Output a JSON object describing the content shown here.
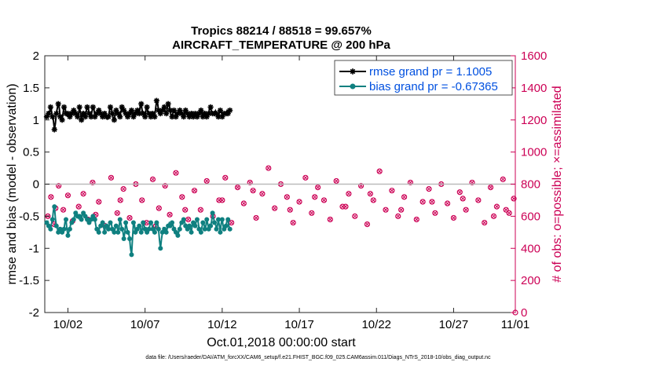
{
  "chart_data": {
    "type": "line",
    "title_line1": "Tropics 88214 / 88518 = 99.657%",
    "title_line2": "AIRCRAFT_TEMPERATURE @ 200 hPa",
    "xlabel": "Oct.01,2018 00:00:00 start",
    "ylabel_left": "rmse and bias (model - observation)",
    "ylabel_right": "# of obs: o=possible; ×=assimilated",
    "footer": "data file: /Users/raeder/DAI/ATM_forcXX/CAM6_setup/f.e21.FHIST_BGC.f09_025.CAM6assim.011/Diags_NTrS_2018-10/obs_diag_output.nc",
    "xlim": [
      0.5,
      31.0
    ],
    "ylim_left": [
      -2,
      2
    ],
    "ylim_right": [
      0,
      1600
    ],
    "xticks": [
      {
        "value": 2,
        "label": "10/02"
      },
      {
        "value": 7,
        "label": "10/07"
      },
      {
        "value": 12,
        "label": "10/12"
      },
      {
        "value": 17,
        "label": "10/17"
      },
      {
        "value": 22,
        "label": "10/22"
      },
      {
        "value": 27,
        "label": "10/27"
      },
      {
        "value": 31,
        "label": "11/01"
      }
    ],
    "yticks_left": [
      "-2",
      "-1.5",
      "-1",
      "-0.5",
      "0",
      "0.5",
      "1",
      "1.5",
      "2"
    ],
    "yticks_right": [
      "0",
      "200",
      "400",
      "600",
      "800",
      "1000",
      "1200",
      "1400",
      "1600"
    ],
    "legend": {
      "position": "top-right",
      "entries": [
        {
          "label": "rmse grand pr = 1.1005",
          "series": "rmse"
        },
        {
          "label": "bias grand pr = -0.67365",
          "series": "bias"
        }
      ]
    },
    "colors": {
      "rmse": "#000000",
      "bias": "#0f8080",
      "obs": "#cc0055",
      "zero_line": "#bbbbbb",
      "left_axis_text": "#000000",
      "right_axis_text": "#cc0055",
      "legend_text": "#0050e0"
    },
    "x_start": 0.625,
    "x_step": 0.125,
    "rmse_anchors": [
      1.05,
      1.1,
      1.2,
      1.05,
      0.85,
      1.1,
      1.25,
      1.05,
      1.0,
      1.2,
      1.1,
      1.1,
      1.05,
      1.1,
      1.15,
      1.1,
      1.05,
      1.2,
      1.0,
      1.1,
      1.05,
      1.2,
      1.1,
      1.05,
      1.2,
      1.05,
      1.1,
      1.15,
      1.1,
      1.05,
      1.1,
      1.05,
      1.05,
      1.2,
      1.1,
      1.0,
      1.15,
      1.1,
      1.05,
      1.2,
      1.15,
      1.1,
      1.05,
      1.1,
      1.15,
      1.05,
      1.1,
      1.15,
      1.1,
      1.25,
      1.1,
      1.05,
      1.2,
      1.1,
      1.05,
      1.1,
      1.05,
      1.3,
      1.15,
      1.1,
      1.15,
      1.2,
      1.1,
      1.25,
      1.15,
      1.05,
      1.15,
      1.05,
      1.1,
      1.15,
      1.1,
      1.05,
      1.15,
      1.1,
      1.05,
      1.1,
      1.05,
      1.1,
      1.05,
      1.1,
      1.15,
      1.05,
      1.1,
      1.05,
      1.1,
      1.2,
      1.1,
      1.1,
      1.1,
      1.05,
      1.15,
      1.05,
      1.1,
      1.1,
      1.1,
      1.15
    ],
    "bias_anchors": [
      -0.6,
      -0.65,
      -0.7,
      -0.55,
      -0.35,
      -0.65,
      -0.75,
      -0.7,
      -0.75,
      -0.7,
      -0.55,
      -0.8,
      -0.7,
      -0.6,
      -0.55,
      -0.45,
      -0.5,
      -0.5,
      -0.55,
      -0.45,
      -0.5,
      -0.55,
      -0.6,
      -0.55,
      -0.5,
      -0.55,
      -0.7,
      -0.75,
      -0.65,
      -0.6,
      -0.75,
      -0.65,
      -0.7,
      -0.6,
      -0.7,
      -0.75,
      -0.65,
      -0.75,
      -0.55,
      -0.7,
      -0.85,
      -0.6,
      -0.75,
      -0.85,
      -1.1,
      -0.6,
      -0.75,
      -0.7,
      -0.65,
      -0.75,
      -0.6,
      -0.7,
      -0.75,
      -0.7,
      -0.6,
      -0.7,
      -0.75,
      -0.6,
      -0.7,
      -1.0,
      -0.75,
      -0.7,
      -0.75,
      -0.65,
      -0.65,
      -0.6,
      -0.7,
      -0.75,
      -0.8,
      -0.7,
      -0.6,
      -0.55,
      -0.65,
      -0.7,
      -0.65,
      -0.75,
      -0.6,
      -0.65,
      -0.55,
      -0.7,
      -0.75,
      -0.6,
      -0.7,
      -0.55,
      -0.7,
      -0.65,
      -0.45,
      -0.6,
      -0.7,
      -0.55,
      -0.75,
      -0.55,
      -0.7,
      -0.65,
      -0.55,
      -0.7
    ],
    "obs_points": [
      [
        0.7,
        600
      ],
      [
        0.9,
        720
      ],
      [
        1.1,
        550
      ],
      [
        1.4,
        790
      ],
      [
        1.7,
        640
      ],
      [
        2.0,
        730
      ],
      [
        2.3,
        570
      ],
      [
        2.7,
        660
      ],
      [
        3.0,
        740
      ],
      [
        3.3,
        580
      ],
      [
        3.6,
        810
      ],
      [
        4.0,
        690
      ],
      [
        4.4,
        540
      ],
      [
        4.8,
        840
      ],
      [
        5.2,
        620
      ],
      [
        5.6,
        770
      ],
      [
        6.0,
        590
      ],
      [
        6.4,
        800
      ],
      [
        6.8,
        700
      ],
      [
        7.1,
        560
      ],
      [
        7.5,
        830
      ],
      [
        7.9,
        650
      ],
      [
        8.3,
        790
      ],
      [
        8.6,
        610
      ],
      [
        9.0,
        870
      ],
      [
        9.4,
        720
      ],
      [
        9.8,
        580
      ],
      [
        10.2,
        760
      ],
      [
        10.6,
        640
      ],
      [
        11.0,
        820
      ],
      [
        11.4,
        600
      ],
      [
        11.8,
        700
      ],
      [
        12.2,
        840
      ],
      [
        12.6,
        560
      ],
      [
        13.0,
        780
      ],
      [
        13.4,
        680
      ],
      [
        13.8,
        810
      ],
      [
        14.2,
        590
      ],
      [
        14.6,
        740
      ],
      [
        15.0,
        900
      ],
      [
        15.4,
        650
      ],
      [
        15.8,
        800
      ],
      [
        16.2,
        720
      ],
      [
        16.6,
        560
      ],
      [
        17.0,
        690
      ],
      [
        17.4,
        840
      ],
      [
        17.8,
        620
      ],
      [
        18.2,
        780
      ],
      [
        18.6,
        700
      ],
      [
        19.0,
        580
      ],
      [
        19.4,
        820
      ],
      [
        19.8,
        660
      ],
      [
        20.2,
        740
      ],
      [
        20.6,
        600
      ],
      [
        21.0,
        790
      ],
      [
        21.4,
        550
      ],
      [
        21.8,
        700
      ],
      [
        22.2,
        880
      ],
      [
        22.6,
        640
      ],
      [
        23.0,
        760
      ],
      [
        23.4,
        600
      ],
      [
        23.8,
        720
      ],
      [
        24.2,
        810
      ],
      [
        24.6,
        580
      ],
      [
        25.0,
        690
      ],
      [
        25.4,
        770
      ],
      [
        25.8,
        620
      ],
      [
        26.2,
        800
      ],
      [
        26.6,
        680
      ],
      [
        27.0,
        590
      ],
      [
        27.4,
        750
      ],
      [
        27.8,
        640
      ],
      [
        28.2,
        810
      ],
      [
        28.6,
        700
      ],
      [
        29.0,
        560
      ],
      [
        29.4,
        780
      ],
      [
        29.8,
        660
      ],
      [
        30.2,
        830
      ],
      [
        30.6,
        620
      ],
      [
        30.9,
        710
      ],
      [
        1.2,
        650
      ],
      [
        3.8,
        610
      ],
      [
        5.4,
        700
      ],
      [
        7.7,
        540
      ],
      [
        9.6,
        640
      ],
      [
        12.0,
        700
      ],
      [
        14.0,
        760
      ],
      [
        16.4,
        640
      ],
      [
        18.0,
        720
      ],
      [
        20.0,
        660
      ],
      [
        21.6,
        740
      ],
      [
        23.6,
        640
      ],
      [
        25.6,
        690
      ],
      [
        27.6,
        710
      ],
      [
        29.6,
        600
      ],
      [
        30.4,
        640
      ]
    ]
  }
}
